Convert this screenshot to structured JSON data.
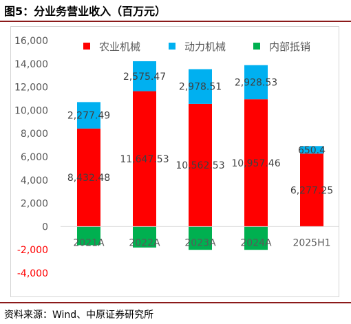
{
  "figure": {
    "title": "图5：分业务营业收入（百万元）",
    "source": "资料来源：Wind、中原证券研究所"
  },
  "chart_data": {
    "type": "bar",
    "stacked": true,
    "categories": [
      "2021A",
      "2022A",
      "2023A",
      "2024A",
      "2025H1"
    ],
    "series": [
      {
        "name": "农业机械",
        "color": "#ff0000",
        "values": [
          8432.48,
          11647.53,
          10562.53,
          10957.46,
          6277.25
        ],
        "labels": [
          "8,432.48",
          "11,647.53",
          "10,562.53",
          "10,957.46",
          "6,277.25"
        ]
      },
      {
        "name": "动力机械",
        "color": "#00b0f0",
        "values": [
          2277.49,
          2575.47,
          2978.51,
          2928.53,
          650.4
        ],
        "labels": [
          "2,277.49",
          "2,575.47",
          "2,978.51",
          "2,928.53",
          "650.4"
        ]
      },
      {
        "name": "内部抵销",
        "color": "#00b050",
        "values": [
          -1600,
          -1800,
          -2000,
          -2000,
          0
        ],
        "labels": [
          "",
          "",
          "",
          "",
          ""
        ]
      }
    ],
    "ylim": [
      -4000,
      16000
    ],
    "yticks": [
      16000,
      14000,
      12000,
      10000,
      8000,
      6000,
      4000,
      2000,
      0,
      -2000,
      -4000
    ],
    "ytick_labels": [
      "16,000",
      "14,000",
      "12,000",
      "10,000",
      "8,000",
      "6,000",
      "4,000",
      "2,000",
      "0",
      "-2,000",
      "-4,000"
    ],
    "negative_tick_color": "#ff0000",
    "grid": false,
    "legend_position": "top"
  }
}
